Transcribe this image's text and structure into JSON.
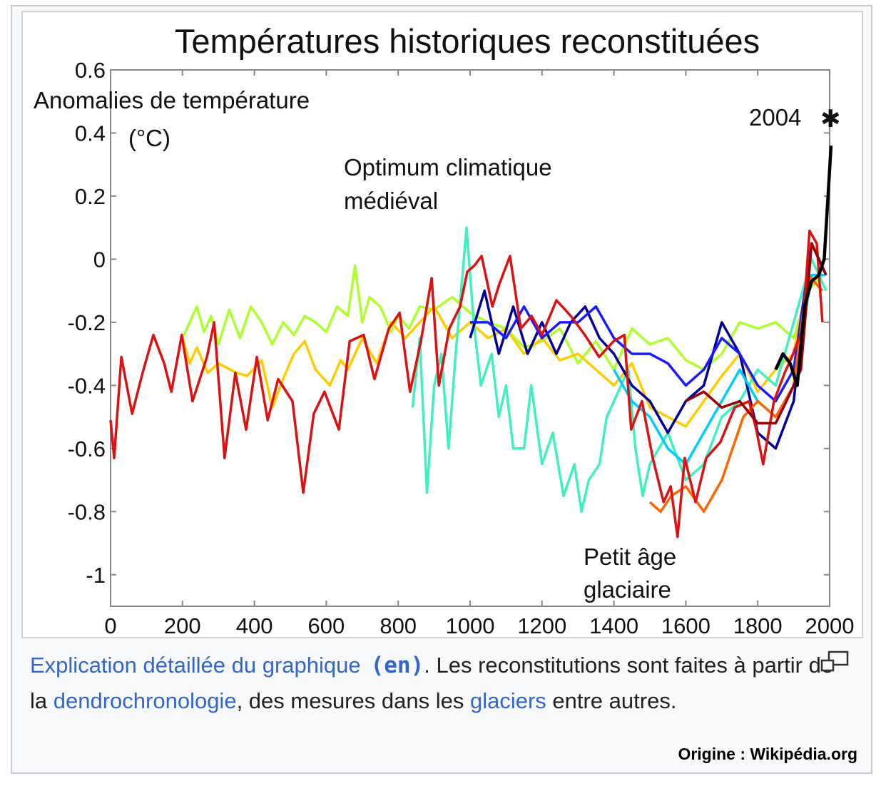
{
  "chart_data": {
    "type": "line",
    "title": "Températures historiques reconstituées",
    "ylabel_line1": "Anomalies de température",
    "ylabel_line2": "(°C)",
    "xlabel": "",
    "xlim": [
      0,
      2000
    ],
    "ylim": [
      -1.1,
      0.6
    ],
    "x_ticks": [
      0,
      200,
      400,
      600,
      800,
      1000,
      1200,
      1400,
      1600,
      1800,
      2000
    ],
    "y_ticks": [
      0.6,
      0.4,
      0.2,
      0,
      -0.2,
      -0.4,
      -0.6,
      -0.8,
      -1
    ],
    "y_tick_labels": [
      "0.6",
      "0.4",
      "0.2",
      "0",
      "-0.2",
      "-0.4",
      "-0.6",
      "-0.8",
      "-1"
    ],
    "x_tick_labels": [
      "0",
      "200",
      "400",
      "600",
      "800",
      "1000",
      "1200",
      "1400",
      "1600",
      "1800",
      "2000"
    ],
    "grid": false,
    "annotations": {
      "medieval_line1": "Optimum climatique",
      "medieval_line2": "médiéval",
      "lia_line1": "Petit âge",
      "lia_line2": "glaciaire",
      "year_2004": "2004",
      "star_marker": {
        "x": 2004,
        "y": 0.45
      }
    },
    "series": [
      {
        "color": "#adff2f",
        "x": [
          200,
          220,
          240,
          260,
          280,
          300,
          330,
          360,
          390,
          420,
          450,
          480,
          510,
          540,
          570,
          600,
          630,
          660,
          680,
          700,
          720,
          750,
          780,
          800,
          830,
          860,
          900,
          950,
          1000,
          1050,
          1100,
          1150,
          1200,
          1250,
          1300,
          1350,
          1400,
          1450,
          1500,
          1550,
          1600,
          1650,
          1700,
          1750,
          1800,
          1850,
          1900,
          1940,
          1980
        ],
        "y": [
          -0.25,
          -0.2,
          -0.15,
          -0.23,
          -0.18,
          -0.27,
          -0.16,
          -0.25,
          -0.15,
          -0.2,
          -0.27,
          -0.2,
          -0.24,
          -0.18,
          -0.2,
          -0.23,
          -0.15,
          -0.18,
          -0.02,
          -0.2,
          -0.12,
          -0.15,
          -0.23,
          -0.18,
          -0.22,
          -0.15,
          -0.16,
          -0.12,
          -0.17,
          -0.2,
          -0.22,
          -0.28,
          -0.26,
          -0.22,
          -0.33,
          -0.26,
          -0.35,
          -0.22,
          -0.27,
          -0.25,
          -0.32,
          -0.35,
          -0.3,
          -0.2,
          -0.22,
          -0.2,
          -0.25,
          -0.1,
          -0.05
        ]
      },
      {
        "color": "#ffcc00",
        "x": [
          200,
          220,
          240,
          270,
          300,
          350,
          380,
          420,
          450,
          480,
          510,
          540,
          570,
          610,
          640,
          660,
          700,
          740,
          780,
          820,
          860,
          900,
          950,
          1000,
          1050,
          1100,
          1150,
          1200,
          1250,
          1300,
          1350,
          1400,
          1450,
          1500,
          1550,
          1600,
          1650,
          1700,
          1750,
          1800,
          1850,
          1900,
          1940,
          1980
        ],
        "y": [
          -0.25,
          -0.33,
          -0.28,
          -0.36,
          -0.33,
          -0.36,
          -0.37,
          -0.32,
          -0.47,
          -0.38,
          -0.3,
          -0.26,
          -0.35,
          -0.4,
          -0.32,
          -0.35,
          -0.25,
          -0.33,
          -0.2,
          -0.25,
          -0.2,
          -0.15,
          -0.25,
          -0.2,
          -0.25,
          -0.22,
          -0.3,
          -0.25,
          -0.32,
          -0.3,
          -0.35,
          -0.4,
          -0.33,
          -0.47,
          -0.5,
          -0.53,
          -0.45,
          -0.37,
          -0.3,
          -0.42,
          -0.35,
          -0.3,
          -0.05,
          -0.1
        ]
      },
      {
        "color": "#40f0c0",
        "x": [
          840,
          860,
          880,
          900,
          920,
          940,
          960,
          990,
          1010,
          1030,
          1060,
          1080,
          1100,
          1120,
          1150,
          1170,
          1200,
          1230,
          1260,
          1290,
          1310,
          1330,
          1360,
          1380,
          1400,
          1440,
          1460,
          1480,
          1500,
          1550,
          1600,
          1650,
          1700,
          1750,
          1800,
          1850,
          1900,
          1950,
          1990
        ],
        "y": [
          -0.47,
          -0.25,
          -0.74,
          -0.4,
          -0.3,
          -0.6,
          -0.3,
          0.1,
          -0.2,
          -0.4,
          -0.3,
          -0.5,
          -0.4,
          -0.6,
          -0.6,
          -0.4,
          -0.65,
          -0.55,
          -0.75,
          -0.65,
          -0.8,
          -0.7,
          -0.65,
          -0.5,
          -0.45,
          -0.35,
          -0.6,
          -0.75,
          -0.65,
          -0.55,
          -0.7,
          -0.65,
          -0.5,
          -0.45,
          -0.35,
          -0.4,
          -0.2,
          0,
          -0.1
        ]
      },
      {
        "color": "#000099",
        "x": [
          1000,
          1040,
          1080,
          1120,
          1160,
          1200,
          1240,
          1280,
          1320,
          1360,
          1400,
          1450,
          1500,
          1550,
          1600,
          1650,
          1700,
          1750,
          1800,
          1850,
          1900,
          1950,
          1990
        ],
        "y": [
          -0.25,
          -0.1,
          -0.3,
          -0.15,
          -0.3,
          -0.2,
          -0.3,
          -0.2,
          -0.15,
          -0.25,
          -0.3,
          -0.4,
          -0.45,
          -0.55,
          -0.45,
          -0.4,
          -0.2,
          -0.3,
          -0.55,
          -0.6,
          -0.45,
          0.05,
          -0.05
        ]
      },
      {
        "color": "#1a1aff",
        "x": [
          1000,
          1050,
          1100,
          1150,
          1200,
          1250,
          1300,
          1350,
          1400,
          1450,
          1500,
          1550,
          1600,
          1650,
          1700,
          1750,
          1800,
          1850,
          1900,
          1950,
          1990
        ],
        "y": [
          -0.2,
          -0.2,
          -0.25,
          -0.15,
          -0.25,
          -0.2,
          -0.2,
          -0.15,
          -0.25,
          -0.3,
          -0.3,
          -0.33,
          -0.4,
          -0.35,
          -0.25,
          -0.3,
          -0.4,
          -0.45,
          -0.35,
          0.05,
          -0.05
        ]
      },
      {
        "color": "#00ccff",
        "x": [
          1400,
          1450,
          1500,
          1550,
          1600,
          1650,
          1700,
          1750,
          1800,
          1850,
          1900,
          1950,
          1990
        ],
        "y": [
          -0.35,
          -0.45,
          -0.5,
          -0.6,
          -0.65,
          -0.55,
          -0.45,
          -0.35,
          -0.45,
          -0.5,
          -0.4,
          -0.05,
          -0.05
        ]
      },
      {
        "color": "#ff6600",
        "x": [
          1500,
          1530,
          1560,
          1600,
          1650,
          1700,
          1730,
          1760,
          1800,
          1850,
          1900,
          1940,
          1980
        ],
        "y": [
          -0.77,
          -0.8,
          -0.75,
          -0.72,
          -0.8,
          -0.7,
          -0.6,
          -0.5,
          -0.45,
          -0.5,
          -0.4,
          -0.05,
          -0.1
        ]
      },
      {
        "color": "#dd1111",
        "x": [
          0,
          10,
          30,
          60,
          89,
          119,
          149,
          169,
          198,
          228,
          268,
          288,
          317,
          347,
          377,
          407,
          437,
          466,
          506,
          536,
          565,
          595,
          635,
          665,
          704,
          734,
          774,
          804,
          833,
          863,
          893,
          913,
          942,
          972,
          992,
          1012,
          1032,
          1062,
          1081,
          1111,
          1141,
          1171,
          1200,
          1240,
          1280,
          1319,
          1359,
          1399,
          1429,
          1448,
          1478,
          1508,
          1538,
          1558,
          1577,
          1597,
          1627,
          1657,
          1696,
          1736,
          1776,
          1796,
          1815,
          1845,
          1875,
          1895,
          1925,
          1944,
          1964,
          1980
        ],
        "y": [
          -0.51,
          -0.63,
          -0.31,
          -0.49,
          -0.36,
          -0.24,
          -0.33,
          -0.42,
          -0.24,
          -0.45,
          -0.31,
          -0.2,
          -0.63,
          -0.36,
          -0.54,
          -0.31,
          -0.51,
          -0.38,
          -0.45,
          -0.74,
          -0.49,
          -0.42,
          -0.54,
          -0.26,
          -0.24,
          -0.38,
          -0.22,
          -0.17,
          -0.42,
          -0.26,
          -0.06,
          -0.4,
          -0.22,
          -0.15,
          -0.04,
          -0.02,
          0.01,
          -0.15,
          -0.08,
          0.01,
          -0.22,
          -0.18,
          -0.24,
          -0.13,
          -0.18,
          -0.24,
          -0.31,
          -0.26,
          -0.24,
          -0.54,
          -0.45,
          -0.63,
          -0.77,
          -0.72,
          -0.88,
          -0.63,
          -0.77,
          -0.63,
          -0.58,
          -0.47,
          -0.45,
          -0.54,
          -0.65,
          -0.45,
          -0.36,
          -0.31,
          -0.22,
          0.09,
          0.05,
          -0.2
        ]
      },
      {
        "color": "#990000",
        "x": [
          1600,
          1650,
          1700,
          1750,
          1800,
          1850,
          1880,
          1920,
          1950,
          1990
        ],
        "y": [
          -0.45,
          -0.42,
          -0.47,
          -0.45,
          -0.52,
          -0.52,
          -0.45,
          -0.35,
          0.05,
          -0.05
        ]
      },
      {
        "color": "#000000",
        "x": [
          1850,
          1870,
          1890,
          1910,
          1930,
          1950,
          1970,
          1985,
          2004
        ],
        "y": [
          -0.35,
          -0.3,
          -0.33,
          -0.4,
          -0.15,
          -0.07,
          -0.05,
          0.0,
          0.36
        ]
      }
    ]
  },
  "caption": {
    "link1": "Explication détaillée du graphique",
    "lang": "(en)",
    "text1": ". Les reconstitutions sont faites à partir de la ",
    "link2": "dendrochronologie",
    "text2": ", des mesures dans les ",
    "link3": "glaciers",
    "text3": " entre autres.",
    "enlarge_icon": "enlarge-icon"
  },
  "origin": "Origine : Wikipédia.org"
}
